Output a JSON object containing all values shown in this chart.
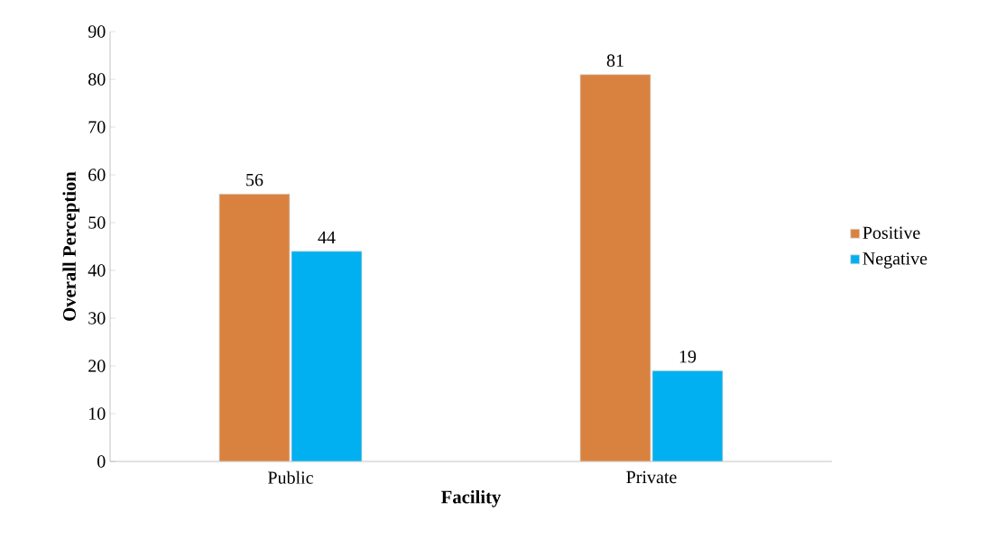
{
  "chart_data": {
    "type": "bar",
    "xlabel": "Facility",
    "ylabel": "Overall Perception",
    "categories": [
      "Public",
      "Private"
    ],
    "series": [
      {
        "name": "Positive",
        "color": "#d9823f",
        "values": [
          56,
          81
        ]
      },
      {
        "name": "Negative",
        "color": "#00b0f0",
        "values": [
          44,
          19
        ]
      }
    ],
    "ylim": [
      0,
      90
    ],
    "yticks": [
      0,
      10,
      20,
      30,
      40,
      50,
      60,
      70,
      80,
      90
    ],
    "data_labels": true,
    "legend": "right",
    "grid": false
  }
}
